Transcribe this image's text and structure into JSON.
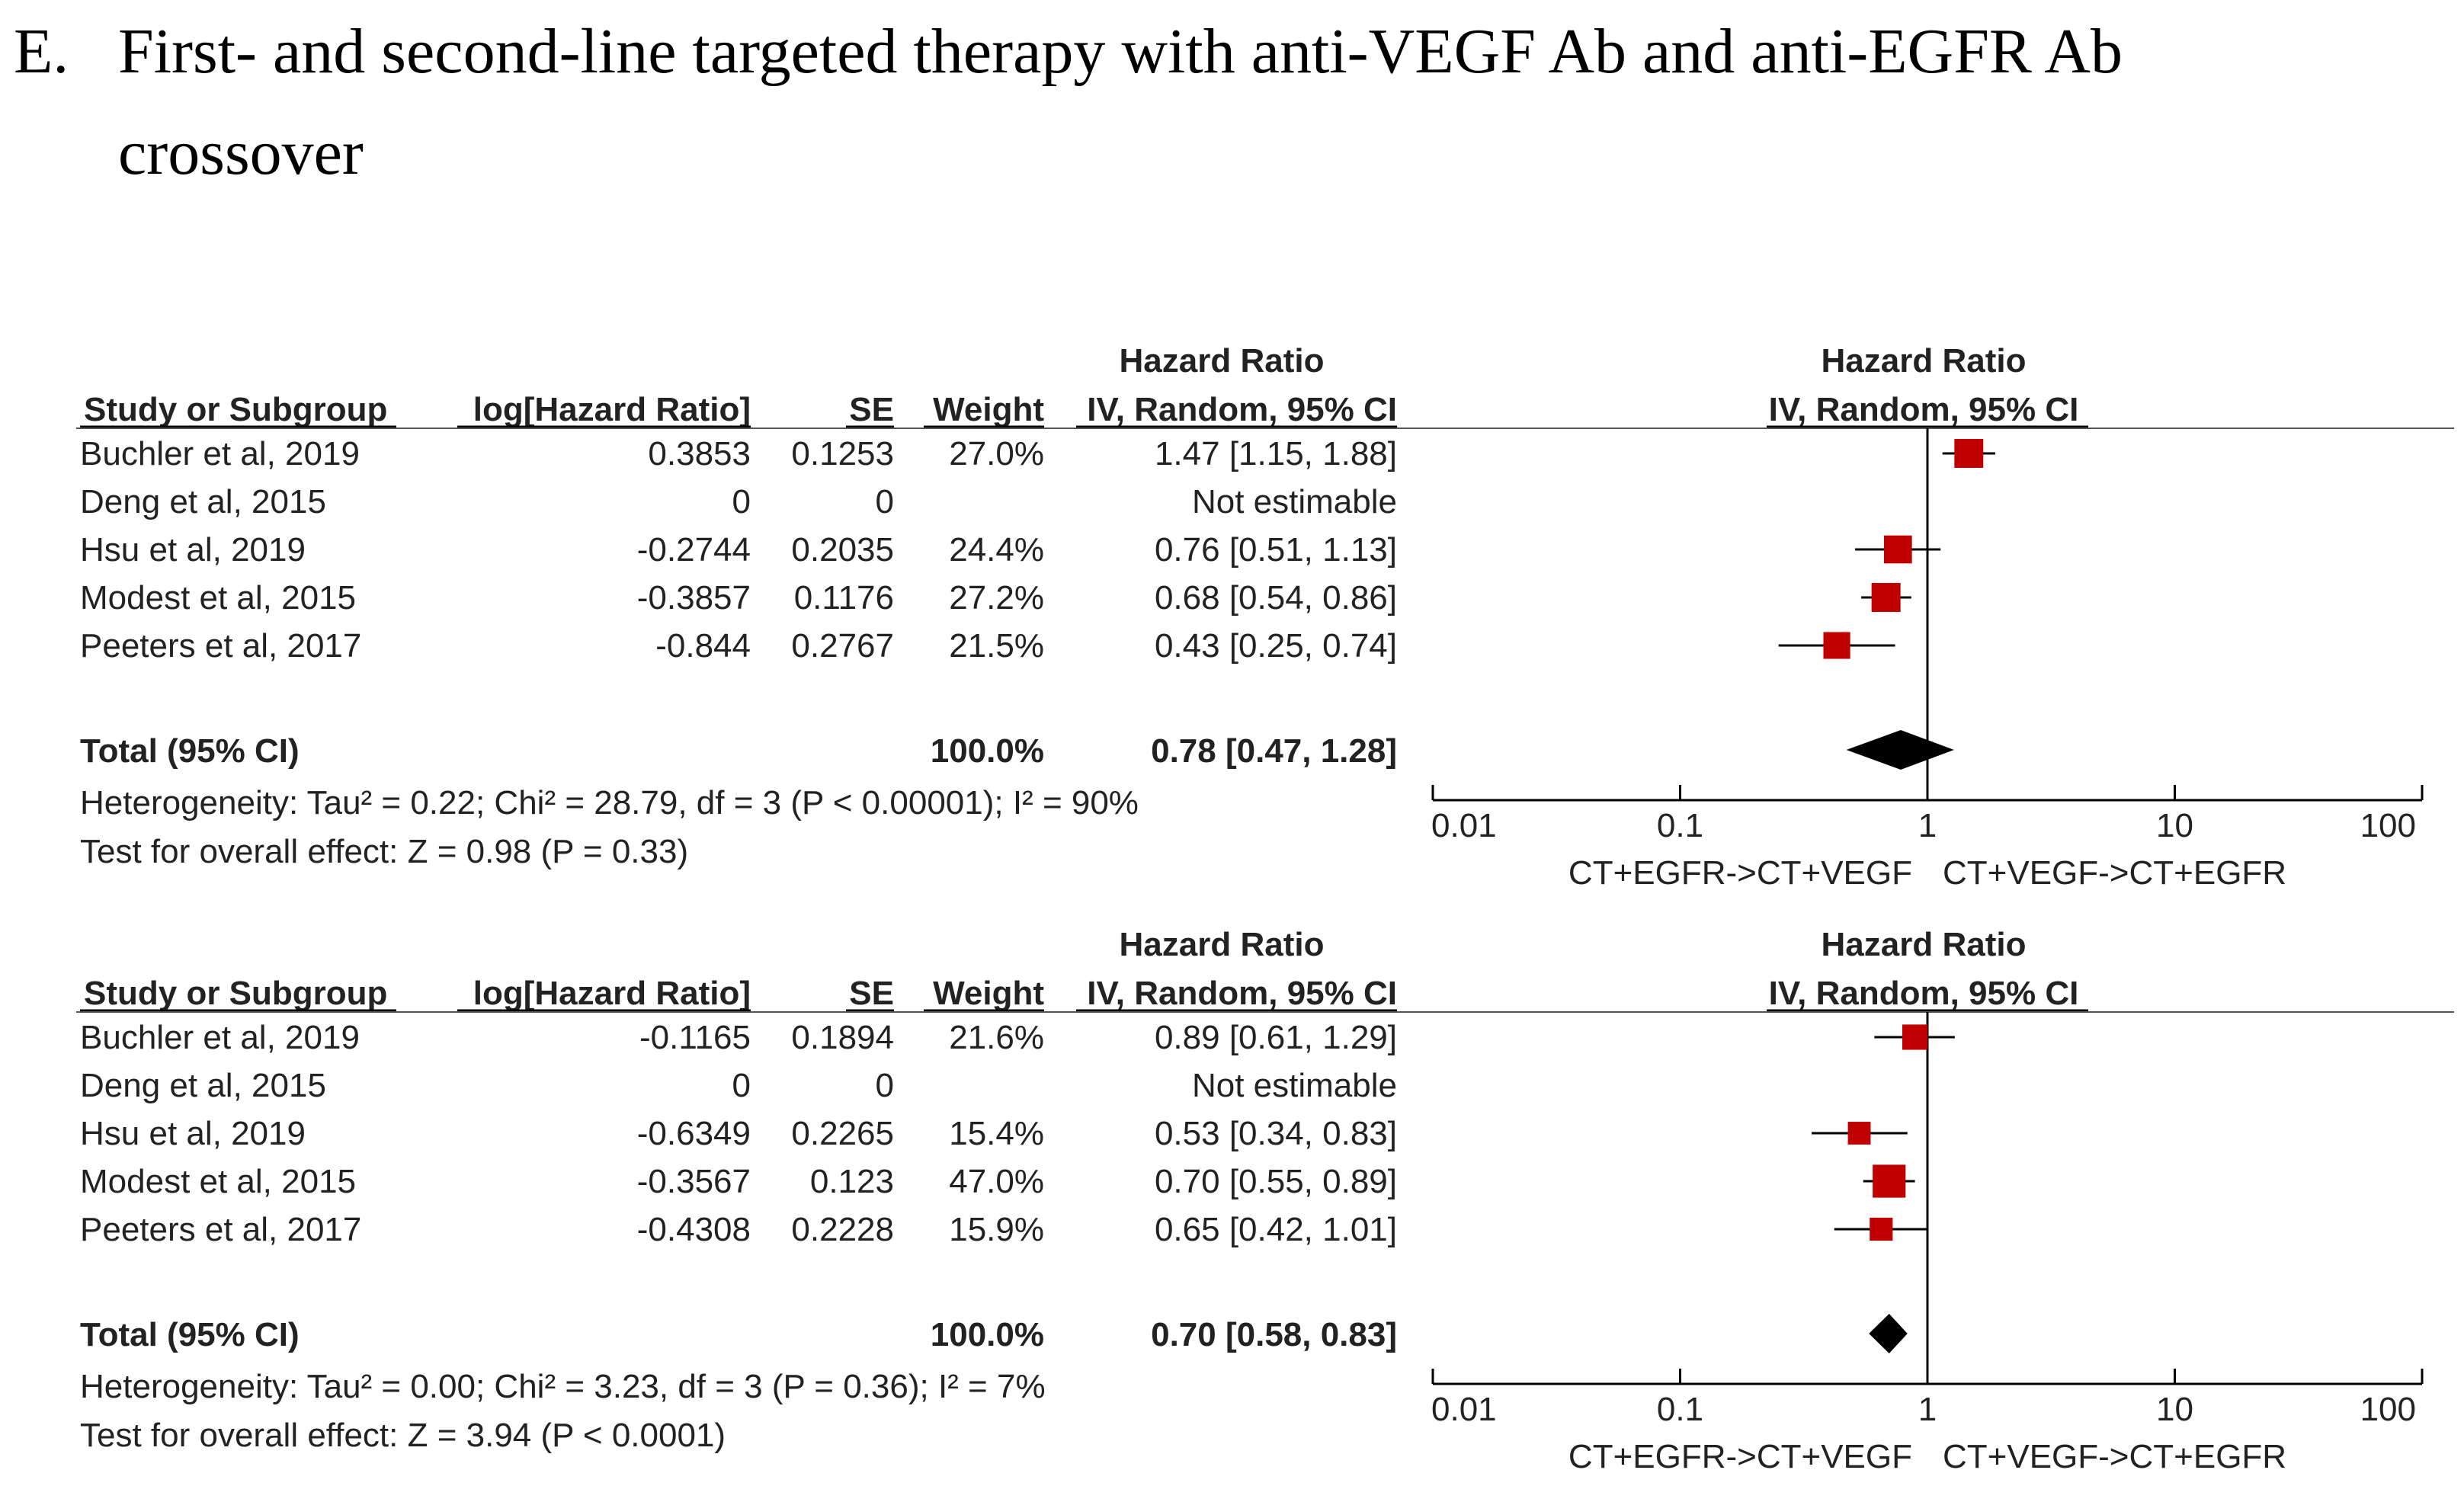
{
  "figure_title": {
    "label": "E.",
    "line1": "First- and second-line targeted therapy with anti-VEGF Ab and anti-EGFR Ab",
    "line2": "crossover"
  },
  "chart_data": [
    {
      "type": "forest",
      "headers": {
        "study": "Study or Subgroup",
        "log_hr": "log[Hazard Ratio]",
        "se": "SE",
        "weight": "Weight",
        "hr_title": "Hazard Ratio",
        "hr_method": "IV, Random, 95% CI",
        "plot_title": "Hazard Ratio",
        "plot_method": "IV, Random, 95% CI"
      },
      "studies": [
        {
          "name": "Buchler et al, 2019",
          "log_hr": "0.3853",
          "se": "0.1253",
          "weight": "27.0%",
          "ci_text": "1.47 [1.15, 1.88]",
          "hr": 1.47,
          "lower": 1.15,
          "upper": 1.88,
          "weight_value": 27.0
        },
        {
          "name": "Deng et al, 2015",
          "log_hr": "0",
          "se": "0",
          "weight": "",
          "ci_text": "Not estimable",
          "hr": null,
          "lower": null,
          "upper": null,
          "weight_value": 0
        },
        {
          "name": "Hsu et al, 2019",
          "log_hr": "-0.2744",
          "se": "0.2035",
          "weight": "24.4%",
          "ci_text": "0.76 [0.51, 1.13]",
          "hr": 0.76,
          "lower": 0.51,
          "upper": 1.13,
          "weight_value": 24.4
        },
        {
          "name": "Modest et al, 2015",
          "log_hr": "-0.3857",
          "se": "0.1176",
          "weight": "27.2%",
          "ci_text": "0.68 [0.54, 0.86]",
          "hr": 0.68,
          "lower": 0.54,
          "upper": 0.86,
          "weight_value": 27.2
        },
        {
          "name": "Peeters et al, 2017",
          "log_hr": "-0.844",
          "se": "0.2767",
          "weight": "21.5%",
          "ci_text": "0.43 [0.25, 0.74]",
          "hr": 0.43,
          "lower": 0.25,
          "upper": 0.74,
          "weight_value": 21.5
        }
      ],
      "total": {
        "label": "Total (95% CI)",
        "weight": "100.0%",
        "ci_text": "0.78 [0.47, 1.28]",
        "hr": 0.78,
        "lower": 0.47,
        "upper": 1.28
      },
      "heterogeneity": "Heterogeneity: Tau² = 0.22; Chi² = 28.79, df = 3 (P < 0.00001); I² = 90%",
      "overall_effect": "Test for overall effect: Z = 0.98 (P = 0.33)",
      "x_scale": "log",
      "x_ticks": [
        0.01,
        0.1,
        1,
        10,
        100
      ],
      "x_tick_labels": [
        "0.01",
        "0.1",
        "1",
        "10",
        "100"
      ],
      "favours_left": "CT+EGFR->CT+VEGF",
      "favours_right": "CT+VEGF->CT+EGFR"
    },
    {
      "type": "forest",
      "headers": {
        "study": "Study or Subgroup",
        "log_hr": "log[Hazard Ratio]",
        "se": "SE",
        "weight": "Weight",
        "hr_title": "Hazard Ratio",
        "hr_method": "IV, Random, 95% CI",
        "plot_title": "Hazard Ratio",
        "plot_method": "IV, Random, 95% CI"
      },
      "studies": [
        {
          "name": "Buchler et al, 2019",
          "log_hr": "-0.1165",
          "se": "0.1894",
          "weight": "21.6%",
          "ci_text": "0.89 [0.61, 1.29]",
          "hr": 0.89,
          "lower": 0.61,
          "upper": 1.29,
          "weight_value": 21.6
        },
        {
          "name": "Deng et al, 2015",
          "log_hr": "0",
          "se": "0",
          "weight": "",
          "ci_text": "Not estimable",
          "hr": null,
          "lower": null,
          "upper": null,
          "weight_value": 0
        },
        {
          "name": "Hsu et al, 2019",
          "log_hr": "-0.6349",
          "se": "0.2265",
          "weight": "15.4%",
          "ci_text": "0.53 [0.34, 0.83]",
          "hr": 0.53,
          "lower": 0.34,
          "upper": 0.83,
          "weight_value": 15.4
        },
        {
          "name": "Modest et al, 2015",
          "log_hr": "-0.3567",
          "se": "0.123",
          "weight": "47.0%",
          "ci_text": "0.70 [0.55, 0.89]",
          "hr": 0.7,
          "lower": 0.55,
          "upper": 0.89,
          "weight_value": 47.0
        },
        {
          "name": "Peeters et al, 2017",
          "log_hr": "-0.4308",
          "se": "0.2228",
          "weight": "15.9%",
          "ci_text": "0.65 [0.42, 1.01]",
          "hr": 0.65,
          "lower": 0.42,
          "upper": 1.01,
          "weight_value": 15.9
        }
      ],
      "total": {
        "label": "Total (95% CI)",
        "weight": "100.0%",
        "ci_text": "0.70 [0.58, 0.83]",
        "hr": 0.7,
        "lower": 0.58,
        "upper": 0.83
      },
      "heterogeneity": "Heterogeneity: Tau² = 0.00; Chi² = 3.23, df = 3 (P = 0.36); I² = 7%",
      "overall_effect": "Test for overall effect: Z = 3.94 (P < 0.0001)",
      "x_scale": "log",
      "x_ticks": [
        0.01,
        0.1,
        1,
        10,
        100
      ],
      "x_tick_labels": [
        "0.01",
        "0.1",
        "1",
        "10",
        "100"
      ],
      "favours_left": "CT+EGFR->CT+VEGF",
      "favours_right": "CT+VEGF->CT+EGFR"
    }
  ],
  "colors": {
    "marker": "#c00000",
    "diamond": "#000000",
    "line": "#000000",
    "text": "#222222"
  }
}
